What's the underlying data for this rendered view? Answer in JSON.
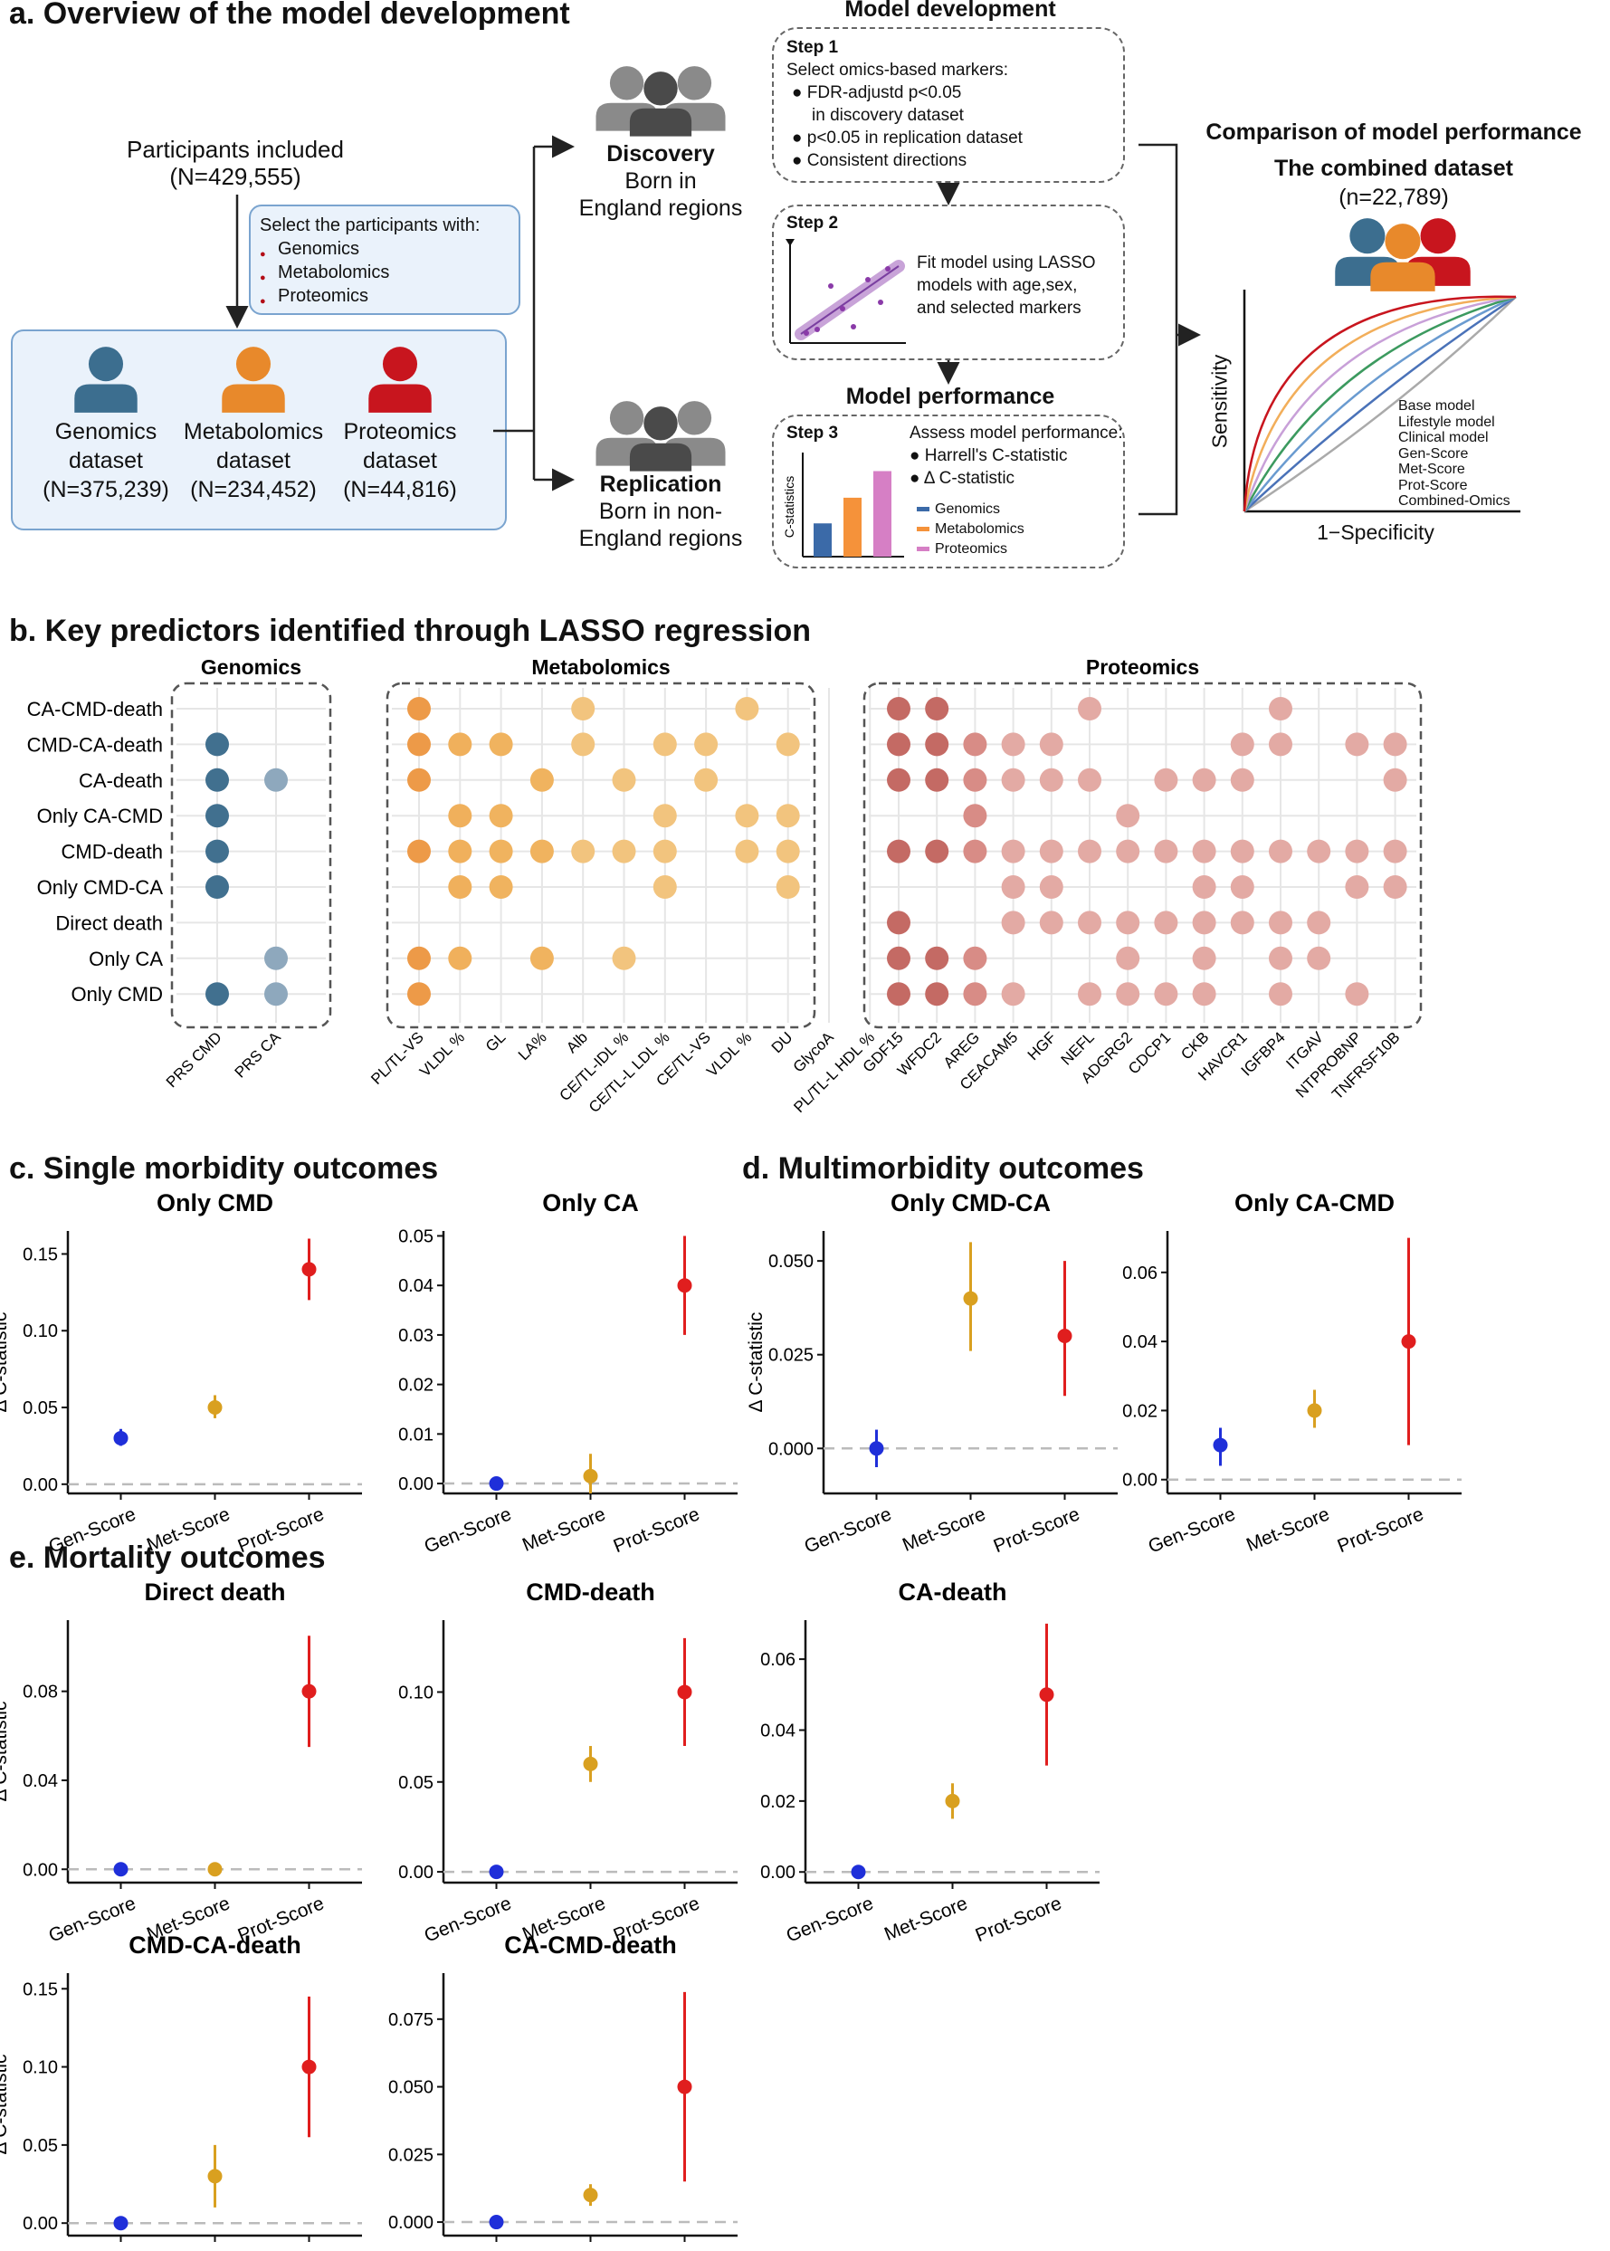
{
  "panel_a": {
    "title": "a. Overview of the model development",
    "participants_line1": "Participants included",
    "participants_line2": "(N=429,555)",
    "select_title": "Select the participants with:",
    "select_items": [
      "Genomics",
      "Metabolomics",
      "Proteomics"
    ],
    "datasets": [
      {
        "line1": "Genomics",
        "line2": "dataset",
        "line3": "(N=375,239)",
        "color": "#3c6e8f"
      },
      {
        "line1": "Metabolomics",
        "line2": "dataset",
        "line3": "(N=234,452)",
        "color": "#e8892b"
      },
      {
        "line1": "Proteomics",
        "line2": "dataset",
        "line3": "(N=44,816)",
        "color": "#c8151e"
      }
    ],
    "discovery_title": "Discovery",
    "discovery_line1": "Born in",
    "discovery_line2": "England regions",
    "replication_title": "Replication",
    "replication_line1": "Born in non-",
    "replication_line2": "England regions",
    "model_dev_title": "Model development",
    "step1_title": "Step 1",
    "step1_intro": "Select omics-based markers:",
    "step1_items": [
      "FDR-adjustd p<0.05",
      "in discovery dataset",
      "p<0.05 in replication dataset",
      "Consistent directions"
    ],
    "step2_title": "Step 2",
    "step2_text": [
      "Fit model using LASSO",
      "models with age,sex,",
      "and selected markers"
    ],
    "model_perf_title": "Model performance",
    "step3_title": "Step 3",
    "step3_intro": "Assess model performance:",
    "step3_items": [
      "Harrell's C-statistic",
      "Δ C-statistic"
    ],
    "step3_ylabel": "C-statistics",
    "step3_legend": [
      "Genomics",
      "Metabolomics",
      "Proteomics"
    ],
    "step3_bars": [
      0.35,
      0.62,
      0.9
    ],
    "step3_colors": [
      "#3b6aa8",
      "#f5923a",
      "#d67fc5"
    ],
    "compare_title": "Comparison of model performance",
    "combined_title": "The combined dataset",
    "combined_n": "(n=22,789)",
    "roc_ylabel": "Sensitivity",
    "roc_xlabel": "1−Specificity",
    "roc_legend": [
      "Base model",
      "Lifestyle model",
      "Clinical model",
      "Gen-Score",
      "Met-Score",
      "Prot-Score",
      "Combined-Omics"
    ],
    "roc_colors": [
      "#aaaaaa",
      "#4a72b8",
      "#6a9bd0",
      "#3c9a5f",
      "#c8a0d8",
      "#f2ae5a",
      "#c8151e"
    ]
  },
  "panel_b": {
    "title": "b.  Key predictors identified through LASSO regression",
    "rows": [
      "CA-CMD-death",
      "CMD-CA-death",
      "CA-death",
      "Only CA-CMD",
      "CMD-death",
      "Only CMD-CA",
      "Direct death",
      "Only CA",
      "Only CMD"
    ],
    "groups": [
      {
        "name": "Genomics",
        "columns": [
          "PRS CMD",
          "PRS CA"
        ],
        "colors": [
          "#41708f",
          "#8ea8bd"
        ],
        "presence": [
          [
            0,
            0
          ],
          [
            1,
            0
          ],
          [
            1,
            1
          ],
          [
            1,
            0
          ],
          [
            1,
            0
          ],
          [
            1,
            0
          ],
          [
            0,
            0
          ],
          [
            0,
            1
          ],
          [
            1,
            1
          ]
        ]
      },
      {
        "name": "Metabolomics",
        "columns": [
          "PL/TL-VS",
          "VLDL %",
          "GL",
          "LA%",
          "Alb",
          "CE/TL-IDL %",
          "CE/TL-L LDL %",
          "CE/TL-VS",
          "VLDL %",
          "DU",
          "GlycoA",
          "PL/TL-L HDL %"
        ],
        "colors": [
          "#ed9a48",
          "#f0b05c",
          "#f0b35f",
          "#f0b35f",
          "#f2c47e",
          "#f2c47e",
          "#f2c47e",
          "#f2c47e",
          "#f2c47e",
          "#f2c47e",
          "#f2c47e",
          "#f2c47e"
        ],
        "presence": [
          [
            1,
            0,
            0,
            0,
            1,
            0,
            0,
            0,
            1,
            0,
            0,
            0
          ],
          [
            1,
            1,
            1,
            0,
            1,
            0,
            1,
            1,
            0,
            1,
            0,
            0
          ],
          [
            1,
            0,
            0,
            1,
            0,
            1,
            0,
            1,
            0,
            0,
            0,
            0
          ],
          [
            0,
            1,
            1,
            0,
            0,
            0,
            1,
            0,
            1,
            1,
            0,
            0
          ],
          [
            1,
            1,
            1,
            1,
            1,
            1,
            1,
            0,
            1,
            1,
            0,
            0
          ],
          [
            0,
            1,
            1,
            0,
            0,
            0,
            1,
            0,
            0,
            1,
            0,
            0
          ],
          [
            0,
            0,
            0,
            0,
            0,
            0,
            0,
            0,
            0,
            0,
            0,
            0
          ],
          [
            1,
            1,
            0,
            1,
            0,
            1,
            0,
            0,
            0,
            0,
            0,
            0
          ],
          [
            1,
            0,
            0,
            0,
            0,
            0,
            0,
            0,
            0,
            0,
            0,
            0
          ]
        ]
      },
      {
        "name": "Proteomics",
        "columns": [
          "GDF15",
          "WFDC2",
          "AREG",
          "CEACAM5",
          "HGF",
          "NEFL",
          "ADGRG2",
          "CDCP1",
          "CKB",
          "HAVCR1",
          "IGFBP4",
          "ITGAV",
          "NTPROBNP",
          "TNFRSF10B"
        ],
        "colors": [
          "#c46a64",
          "#c46a64",
          "#d88c86",
          "#e3aaa4",
          "#e3aaa4",
          "#e3aaa4",
          "#e3aaa4",
          "#e3aaa4",
          "#e3aaa4",
          "#e3aaa4",
          "#e3aaa4",
          "#e3aaa4",
          "#e3aaa4",
          "#e3aaa4"
        ],
        "presence": [
          [
            1,
            1,
            0,
            0,
            0,
            1,
            0,
            0,
            0,
            0,
            1,
            0,
            0,
            0
          ],
          [
            1,
            1,
            1,
            1,
            1,
            0,
            0,
            0,
            0,
            1,
            1,
            0,
            1,
            1
          ],
          [
            1,
            1,
            1,
            1,
            1,
            1,
            0,
            1,
            1,
            1,
            0,
            0,
            0,
            1
          ],
          [
            0,
            0,
            1,
            0,
            0,
            0,
            1,
            0,
            0,
            0,
            0,
            0,
            0,
            0
          ],
          [
            1,
            1,
            1,
            1,
            1,
            1,
            1,
            1,
            1,
            1,
            1,
            1,
            1,
            1
          ],
          [
            0,
            0,
            0,
            1,
            1,
            0,
            0,
            0,
            1,
            1,
            0,
            0,
            1,
            1
          ],
          [
            1,
            0,
            0,
            1,
            1,
            1,
            1,
            1,
            1,
            1,
            1,
            1,
            0,
            0
          ],
          [
            1,
            1,
            1,
            0,
            0,
            0,
            1,
            0,
            1,
            0,
            1,
            1,
            0,
            0
          ],
          [
            1,
            1,
            1,
            1,
            0,
            1,
            1,
            1,
            1,
            0,
            1,
            0,
            1,
            0
          ]
        ]
      }
    ]
  },
  "chart_data": [
    {
      "type": "scatter",
      "title": "Only CMD",
      "ylabel": "Δ C-statistic",
      "categories": [
        "Gen-Score",
        "Met-Score",
        "Prot-Score"
      ],
      "values": [
        0.03,
        0.05,
        0.14
      ],
      "lower": [
        0.025,
        0.043,
        0.12
      ],
      "upper": [
        0.036,
        0.058,
        0.16
      ],
      "ylim": [
        -0.006,
        0.165
      ],
      "yticks": [
        "0.00",
        "0.05",
        "0.10",
        "0.15"
      ],
      "ytick_values": [
        0,
        0.05,
        0.1,
        0.15
      ]
    },
    {
      "type": "scatter",
      "title": "Only CA",
      "ylabel": "",
      "categories": [
        "Gen-Score",
        "Met-Score",
        "Prot-Score"
      ],
      "values": [
        0.0,
        0.0015,
        0.04
      ],
      "lower": [
        -0.0008,
        -0.002,
        0.03
      ],
      "upper": [
        0.0008,
        0.006,
        0.05
      ],
      "ylim": [
        -0.002,
        0.051
      ],
      "yticks": [
        "0.00",
        "0.01",
        "0.02",
        "0.03",
        "0.04",
        "0.05"
      ],
      "ytick_values": [
        0,
        0.01,
        0.02,
        0.03,
        0.04,
        0.05
      ]
    },
    {
      "type": "scatter",
      "title": "Only CMD-CA",
      "ylabel": "Δ C-statistic",
      "categories": [
        "Gen-Score",
        "Met-Score",
        "Prot-Score"
      ],
      "values": [
        0.0,
        0.04,
        0.03
      ],
      "lower": [
        -0.005,
        0.026,
        0.014
      ],
      "upper": [
        0.005,
        0.055,
        0.05
      ],
      "ylim": [
        -0.012,
        0.058
      ],
      "yticks": [
        "0.000",
        "0.025",
        "0.050"
      ],
      "ytick_values": [
        0,
        0.025,
        0.05
      ]
    },
    {
      "type": "scatter",
      "title": "Only CA-CMD",
      "ylabel": "",
      "categories": [
        "Gen-Score",
        "Met-Score",
        "Prot-Score"
      ],
      "values": [
        0.01,
        0.02,
        0.04
      ],
      "lower": [
        0.004,
        0.015,
        0.01
      ],
      "upper": [
        0.015,
        0.026,
        0.07
      ],
      "ylim": [
        -0.004,
        0.072
      ],
      "yticks": [
        "0.00",
        "0.02",
        "0.04",
        "0.06"
      ],
      "ytick_values": [
        0,
        0.02,
        0.04,
        0.06
      ]
    },
    {
      "type": "scatter",
      "title": "Direct death",
      "ylabel": "Δ C-statistic",
      "categories": [
        "Gen-Score",
        "Met-Score",
        "Prot-Score"
      ],
      "values": [
        0.0,
        0.0,
        0.08
      ],
      "lower": [
        -0.0015,
        -0.0015,
        0.055
      ],
      "upper": [
        0.0015,
        0.0015,
        0.105
      ],
      "ylim": [
        -0.006,
        0.112
      ],
      "yticks": [
        "0.00",
        "0.04",
        "0.08"
      ],
      "ytick_values": [
        0,
        0.04,
        0.08
      ]
    },
    {
      "type": "scatter",
      "title": "CMD-death",
      "ylabel": "",
      "categories": [
        "Gen-Score",
        "Met-Score",
        "Prot-Score"
      ],
      "values": [
        0.0,
        0.06,
        0.1
      ],
      "lower": [
        -0.0015,
        0.05,
        0.07
      ],
      "upper": [
        0.0015,
        0.07,
        0.13
      ],
      "ylim": [
        -0.006,
        0.14
      ],
      "yticks": [
        "0.00",
        "0.05",
        "0.10"
      ],
      "ytick_values": [
        0,
        0.05,
        0.1
      ]
    },
    {
      "type": "scatter",
      "title": "CA-death",
      "ylabel": "",
      "categories": [
        "Gen-Score",
        "Met-Score",
        "Prot-Score"
      ],
      "values": [
        0.0,
        0.02,
        0.05
      ],
      "lower": [
        -0.0007,
        0.015,
        0.03
      ],
      "upper": [
        0.0007,
        0.025,
        0.07
      ],
      "ylim": [
        -0.003,
        0.071
      ],
      "yticks": [
        "0.00",
        "0.02",
        "0.04",
        "0.06"
      ],
      "ytick_values": [
        0,
        0.02,
        0.04,
        0.06
      ]
    },
    {
      "type": "scatter",
      "title": "CMD-CA-death",
      "ylabel": "Δ C-statistic",
      "categories": [
        "Gen-Score",
        "Met-Score",
        "Prot-Score"
      ],
      "values": [
        0.0,
        0.03,
        0.1
      ],
      "lower": [
        -0.0015,
        0.01,
        0.055
      ],
      "upper": [
        0.0015,
        0.05,
        0.145
      ],
      "ylim": [
        -0.008,
        0.16
      ],
      "yticks": [
        "0.00",
        "0.05",
        "0.10",
        "0.15"
      ],
      "ytick_values": [
        0,
        0.05,
        0.1,
        0.15
      ]
    },
    {
      "type": "scatter",
      "title": "CA-CMD-death",
      "ylabel": "",
      "categories": [
        "Gen-Score",
        "Met-Score",
        "Prot-Score"
      ],
      "values": [
        0.0,
        0.01,
        0.05
      ],
      "lower": [
        -0.001,
        0.006,
        0.015
      ],
      "upper": [
        0.001,
        0.014,
        0.085
      ],
      "ylim": [
        -0.005,
        0.092
      ],
      "yticks": [
        "0.000",
        "0.025",
        "0.050",
        "0.075"
      ],
      "ytick_values": [
        0,
        0.025,
        0.05,
        0.075
      ]
    }
  ],
  "panel_c": {
    "title": "c. Single morbidity outcomes"
  },
  "panel_d": {
    "title": "d. Multimorbidity outcomes"
  },
  "panel_e": {
    "title": "e. Mortality outcomes"
  },
  "point_colors": [
    "#1f2fd9",
    "#d9a020",
    "#e01e1e"
  ]
}
